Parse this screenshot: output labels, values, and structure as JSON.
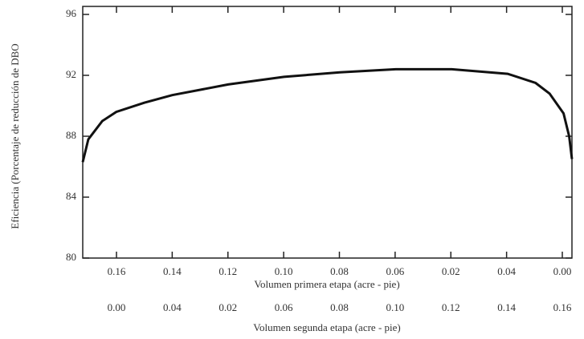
{
  "chart_data": {
    "type": "line",
    "ylabel": "Eficiencia (Porcentaje de reducción de DBO",
    "xlabel": "Volumen primera etapa (acre - pie)",
    "x2label": "Volumen segunda etapa (acre - pie)",
    "xtick_labels": [
      "0.16",
      "0.14",
      "0.12",
      "0.10",
      "0.08",
      "0.06",
      "0.02",
      "0.04",
      "0.00"
    ],
    "x2tick_labels": [
      "0.00",
      "0.04",
      "0.02",
      "0.06",
      "0.08",
      "0.10",
      "0.12",
      "0.14",
      "0.16"
    ],
    "x": [
      0.172,
      0.17,
      0.165,
      0.16,
      0.15,
      0.14,
      0.12,
      0.1,
      0.08,
      0.06,
      0.04,
      0.02,
      0.01,
      0.005,
      0.0,
      -0.002,
      -0.003
    ],
    "series": [
      {
        "color": "#111111",
        "values": [
          86.3,
          87.8,
          89.0,
          89.6,
          90.2,
          90.7,
          91.4,
          91.9,
          92.2,
          92.4,
          92.4,
          92.1,
          91.5,
          90.8,
          89.5,
          88.0,
          86.5
        ]
      }
    ],
    "xlim": [
      0.172,
      -0.003
    ],
    "ylim": [
      80,
      96
    ],
    "yticks": [
      80,
      84,
      88,
      92,
      96
    ]
  }
}
